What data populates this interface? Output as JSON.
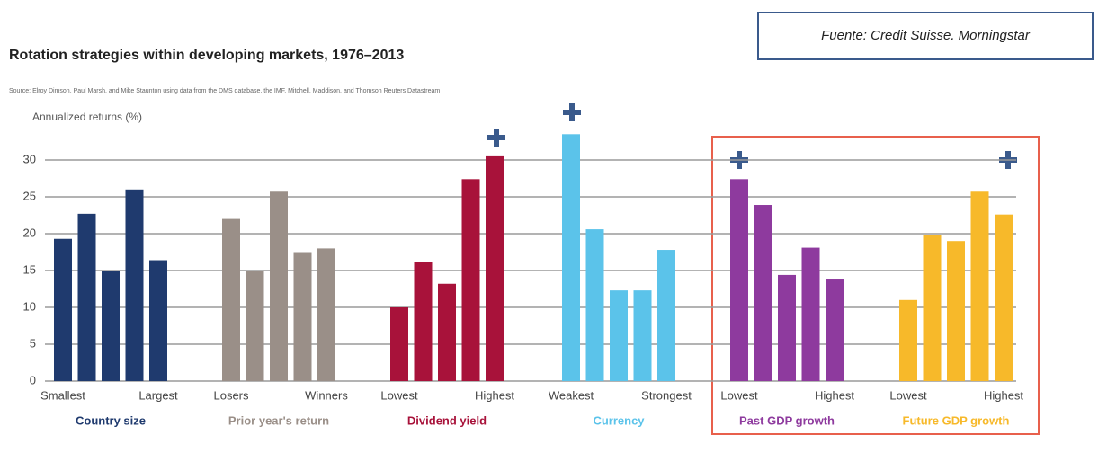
{
  "source_note": "Fuente: Credit Suisse. Morningstar",
  "chart_data": {
    "type": "bar",
    "title": "Rotation strategies within developing markets, 1976–2013",
    "subtitle": "Source: Elroy Dimson, Paul Marsh, and Mike Staunton using data from the DMS database, the IMF, Mitchell, Maddison, and Thomson Reuters Datastream",
    "y_label": "Annualized returns (%)",
    "ylim": [
      0,
      35
    ],
    "yticks": [
      0,
      5,
      10,
      15,
      20,
      25,
      30
    ],
    "grid": true,
    "groups": [
      {
        "name": "Country size",
        "color": "#1f3a6e",
        "categories": [
          "Smallest",
          null,
          null,
          null,
          "Largest"
        ],
        "values": [
          19.3,
          22.7,
          15,
          26,
          16.4
        ]
      },
      {
        "name": "Prior year's return",
        "color": "#9a8f88",
        "categories": [
          "Losers",
          null,
          null,
          null,
          "Winners"
        ],
        "values": [
          22,
          15,
          25.7,
          17.5,
          18
        ]
      },
      {
        "name": "Dividend yield",
        "color": "#a8123a",
        "categories": [
          "Lowest",
          null,
          null,
          null,
          "Highest"
        ],
        "values": [
          10,
          16.2,
          13.2,
          27.4,
          30.5
        ]
      },
      {
        "name": "Currency",
        "color": "#5bc3ea",
        "categories": [
          "Weakest",
          null,
          null,
          null,
          "Strongest"
        ],
        "values": [
          33.5,
          20.6,
          12.3,
          12.3,
          17.8
        ]
      },
      {
        "name": "Past GDP growth",
        "color": "#8e3a9e",
        "categories": [
          "Lowest",
          null,
          null,
          null,
          "Highest"
        ],
        "values": [
          27.4,
          23.9,
          14.4,
          18.1,
          13.9
        ]
      },
      {
        "name": "Future GDP growth",
        "color": "#f7b92a",
        "categories": [
          "Lowest",
          null,
          null,
          null,
          "Highest"
        ],
        "values": [
          11,
          19.8,
          19,
          25.7,
          22.6
        ]
      }
    ]
  }
}
